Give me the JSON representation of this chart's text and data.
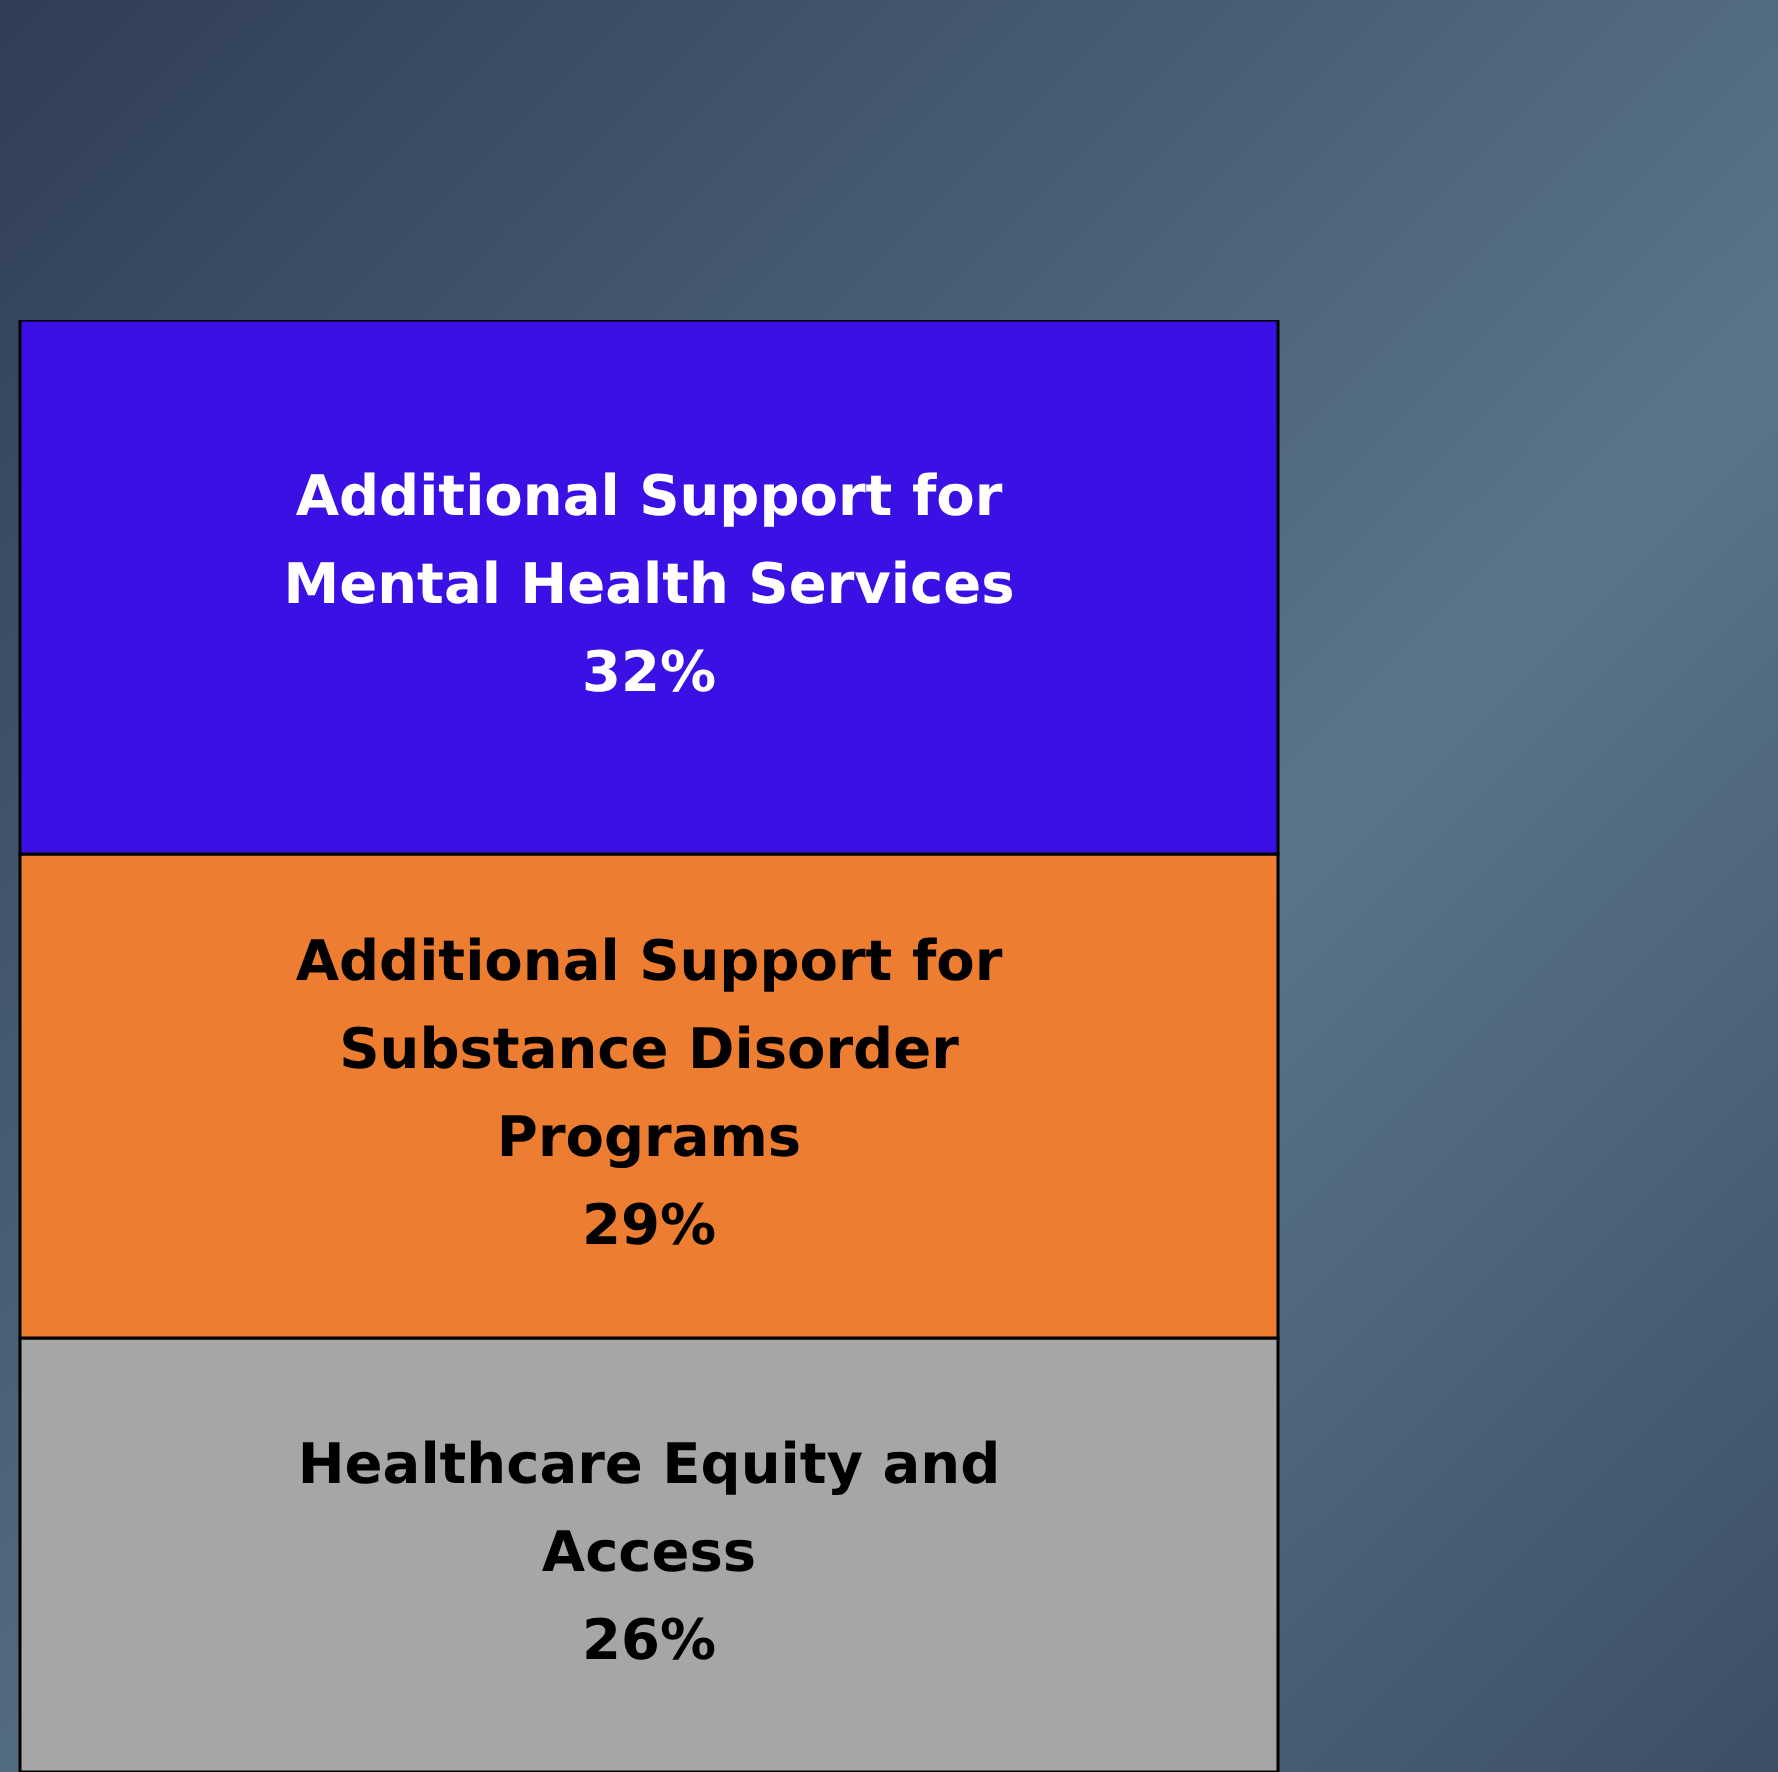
{
  "chart_data": {
    "type": "bar",
    "stacked": true,
    "categories": [
      null
    ],
    "legend": false,
    "series": [
      {
        "name": "Healthcare Equity and Access",
        "color": "#a6a6a6",
        "values": [
          26
        ],
        "value_labels": [
          "26%"
        ]
      },
      {
        "name": "Additional Support for Substance Disorder Programs",
        "color": "#ed7d31",
        "values": [
          29
        ],
        "value_labels": [
          "29%"
        ]
      },
      {
        "name": "Additional Support for Mental Health Services",
        "color": "#3a10e5",
        "values": [
          32
        ],
        "value_labels": [
          "32%"
        ]
      }
    ]
  }
}
